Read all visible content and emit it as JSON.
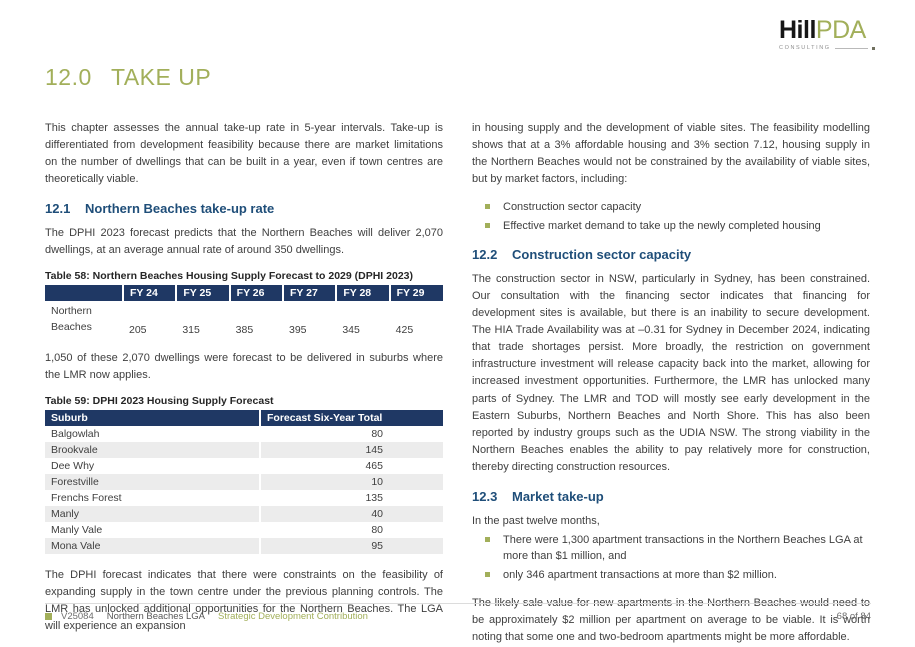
{
  "colors": {
    "brand_green": "#a2af5a",
    "heading_blue": "#1f4e79",
    "table_navy": "#1f3864",
    "body_text": "#3f3f3f"
  },
  "header": {
    "logo": {
      "hill": "Hill",
      "pda": "PDA",
      "tagline": "CONSULTING"
    }
  },
  "page_title": {
    "number": "12.0",
    "text": "TAKE UP"
  },
  "left": {
    "intro": "This chapter assesses the annual take-up rate in 5-year intervals. Take-up is differentiated from development feasibility because there are market limitations on the number of dwellings that can be built in a year, even if town centres are theoretically viable.",
    "section_121": {
      "number": "12.1",
      "title": "Northern Beaches take-up rate"
    },
    "para_dphi": "The DPHI 2023 forecast predicts that the Northern Beaches will deliver 2,070 dwellings, at an average annual rate of around 350 dwellings.",
    "table58": {
      "caption": "Table 58: Northern Beaches Housing Supply Forecast to 2029 (DPHI 2023)",
      "headers": [
        "FY 24",
        "FY 25",
        "FY 26",
        "FY 27",
        "FY 28",
        "FY 29"
      ],
      "row_label": "Northern Beaches",
      "values": [
        "205",
        "315",
        "385",
        "395",
        "345",
        "425"
      ]
    },
    "para_1050": "1,050 of these 2,070 dwellings were forecast to be delivered in suburbs where the LMR now applies.",
    "table59": {
      "caption": "Table 59: DPHI 2023 Housing Supply Forecast",
      "col_suburb": "Suburb",
      "col_total": "Forecast Six-Year Total",
      "rows": [
        {
          "suburb": "Balgowlah",
          "total": "80"
        },
        {
          "suburb": "Brookvale",
          "total": "145"
        },
        {
          "suburb": "Dee Why",
          "total": "465"
        },
        {
          "suburb": "Forestville",
          "total": "10"
        },
        {
          "suburb": "Frenchs Forest",
          "total": "135"
        },
        {
          "suburb": "Manly",
          "total": "40"
        },
        {
          "suburb": "Manly Vale",
          "total": "80"
        },
        {
          "suburb": "Mona Vale",
          "total": "95"
        }
      ]
    },
    "para_constraints": "The DPHI forecast indicates that there were constraints on the feasibility of expanding supply in the town centre under the previous planning controls. The LMR has unlocked additional opportunities for the Northern Beaches. The LGA will experience an expansion"
  },
  "right": {
    "para_housing": "in housing supply and the development of viable sites. The feasibility modelling shows that at a 3% affordable housing and 3% section 7.12, housing supply in the Northern Beaches would not be constrained by the availability of viable sites, but by market factors, including:",
    "bullets_market": [
      "Construction sector capacity",
      "Effective market demand to take up the newly completed housing"
    ],
    "section_122": {
      "number": "12.2",
      "title": "Construction sector capacity"
    },
    "para_construction": "The construction sector in NSW, particularly in Sydney, has been constrained. Our consultation with the financing sector indicates that financing for development sites is available, but there is an inability to secure development. The HIA Trade Availability was at –0.31 for Sydney in December 2024, indicating that trade shortages persist. More broadly, the restriction on government infrastructure investment will release capacity back into the market, allowing for increased investment opportunities. Furthermore, the LMR has unlocked many parts of Sydney. The LMR and TOD will mostly see early development in the Eastern Suburbs, Northern Beaches and North Shore. This has also been reported by industry groups such as the UDIA NSW. The strong viability in the Northern Beaches enables the ability to pay relatively more for construction, thereby directing construction resources.",
    "section_123": {
      "number": "12.3",
      "title": "Market take-up"
    },
    "para_twelve": "In the past twelve months,",
    "bullets_transactions": [
      "There were 1,300 apartment transactions in the Northern Beaches LGA at more than $1 million, and",
      "only 346 apartment transactions at more than $2 million."
    ],
    "para_sale": "The likely sale value for new apartments in the Northern Beaches would need to be approximately $2 million per apartment on average to be viable. It is worth noting that some one and two-bedroom apartments might be more affordable."
  },
  "footer": {
    "code": "V25084",
    "lga": "Northern Beaches LGA",
    "doc": "Strategic Development Contribution",
    "page": "68 of 84"
  }
}
